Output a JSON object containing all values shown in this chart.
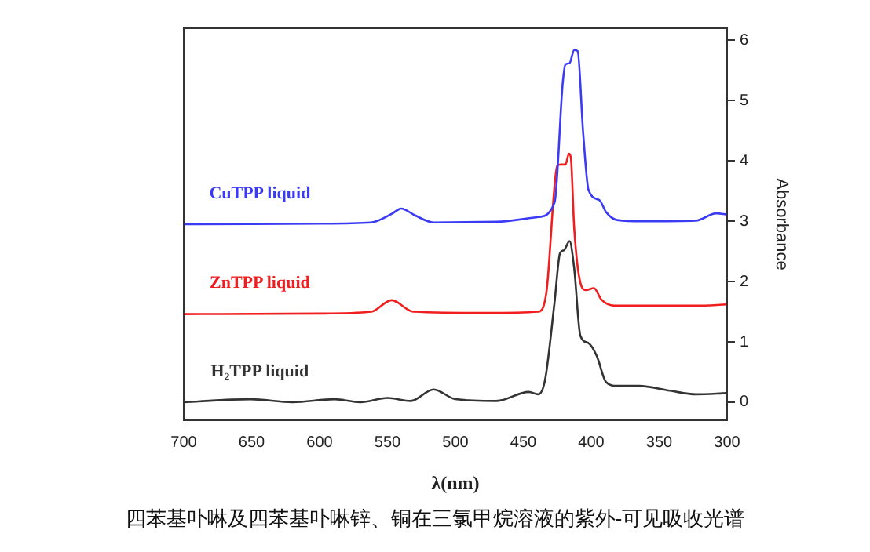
{
  "chart_data": {
    "type": "line",
    "xlabel": "λ(nm)",
    "ylabel": "Absorbance",
    "annotations": [
      "四苯基卟啉及四苯基卟啉锌、铜在三氯甲烷溶液的紫外-可见吸收光谱"
    ],
    "xlim": [
      700,
      300
    ],
    "xticks": [
      700,
      650,
      600,
      550,
      500,
      450,
      400,
      350,
      300
    ],
    "ylim": [
      -0.3,
      6.2
    ],
    "yticks": [
      0,
      1,
      2,
      3,
      4,
      5,
      6
    ],
    "grid": false,
    "legend": false,
    "marker": "none",
    "line_style": "solid",
    "series": [
      {
        "name": "CuTPP liquid",
        "color": "#3b3bf5",
        "x": [
          700,
          600,
          562,
          547,
          540,
          530,
          516,
          470,
          439,
          427,
          421,
          419,
          416,
          412.5,
          410,
          406,
          402,
          394,
          389,
          381,
          362,
          323,
          308,
          300
        ],
        "values": [
          2.95,
          2.96,
          2.98,
          3.12,
          3.21,
          3.1,
          2.98,
          2.99,
          3.07,
          3.31,
          5.29,
          5.6,
          5.62,
          5.84,
          5.82,
          4.48,
          3.52,
          3.35,
          3.15,
          3.02,
          3.0,
          3.01,
          3.13,
          3.11
        ]
      },
      {
        "name": "ZnTPP liquid",
        "color": "#f01e1e",
        "x": [
          700,
          600,
          562,
          547,
          531,
          477,
          439,
          433,
          425,
          422.5,
          419,
          416.4,
          415,
          412.5,
          408,
          404,
          398,
          392.5,
          383,
          362,
          323,
          300
        ],
        "values": [
          1.46,
          1.47,
          1.5,
          1.69,
          1.5,
          1.48,
          1.5,
          1.82,
          3.92,
          3.94,
          3.94,
          4.12,
          4.05,
          2.87,
          1.98,
          1.86,
          1.89,
          1.7,
          1.6,
          1.6,
          1.6,
          1.62
        ]
      },
      {
        "name": "H₂TPP liquid",
        "color": "#333333",
        "x": [
          700,
          651,
          620,
          589,
          570,
          550,
          533,
          516,
          500,
          470,
          446,
          439,
          434,
          427,
          423,
          420,
          416,
          412.6,
          408,
          402,
          396,
          389,
          381,
          365,
          342,
          323,
          300
        ],
        "values": [
          0.0,
          0.05,
          0.0,
          0.05,
          0.0,
          0.07,
          0.02,
          0.21,
          0.05,
          0.02,
          0.17,
          0.13,
          0.37,
          1.66,
          2.47,
          2.52,
          2.67,
          2.23,
          1.1,
          0.98,
          0.77,
          0.33,
          0.27,
          0.27,
          0.19,
          0.13,
          0.15
        ]
      }
    ]
  }
}
